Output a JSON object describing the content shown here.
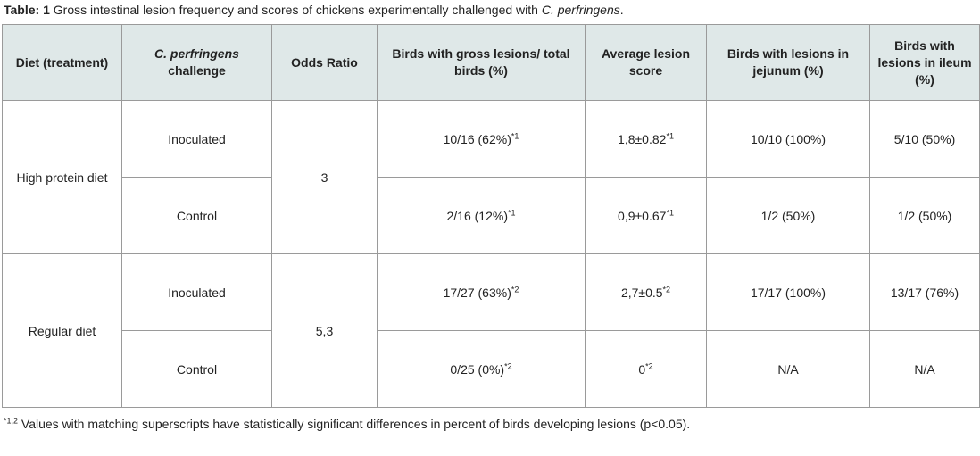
{
  "caption": {
    "label": "Table: 1",
    "text": " Gross intestinal lesion frequency and scores of chickens experimentally challenged with ",
    "organism": "C. perfringens",
    "end": "."
  },
  "headers": {
    "diet": "Diet (treatment)",
    "challenge_italic": "C. perfringens",
    "challenge_rest": "challenge",
    "odds": "Odds Ratio",
    "birds_lesions": "Birds with gross lesions/ total birds (%)",
    "avg_score": "Average lesion score",
    "jejunum": "Birds with lesions in jejunum (%)",
    "ileum": "Birds with lesions in ileum (%)"
  },
  "groups": [
    {
      "diet": "High protein diet",
      "odds": "3",
      "rows": [
        {
          "challenge": "Inoculated",
          "lesions": "10/16 (62%)",
          "lesions_sup": "*1",
          "score": "1,8±0.82",
          "score_sup": "*1",
          "jejunum": "10/10 (100%)",
          "ileum": "5/10 (50%)"
        },
        {
          "challenge": "Control",
          "lesions": "2/16 (12%)",
          "lesions_sup": "*1",
          "score": "0,9±0.67",
          "score_sup": "*1",
          "jejunum": "1/2 (50%)",
          "ileum": "1/2 (50%)"
        }
      ]
    },
    {
      "diet": "Regular diet",
      "odds": "5,3",
      "rows": [
        {
          "challenge": "Inoculated",
          "lesions": "17/27 (63%)",
          "lesions_sup": "*2",
          "score": "2,7±0.5",
          "score_sup": "*2",
          "jejunum": "17/17 (100%)",
          "ileum": "13/17 (76%)"
        },
        {
          "challenge": "Control",
          "lesions": "0/25 (0%)",
          "lesions_sup": "*2",
          "score": "0",
          "score_sup": "*2",
          "jejunum": "N/A",
          "ileum": "N/A"
        }
      ]
    }
  ],
  "footnote": {
    "marker": "*1,2",
    "text": " Values with matching superscripts have statistically significant differences in percent of birds developing lesions (p<0.05)."
  }
}
